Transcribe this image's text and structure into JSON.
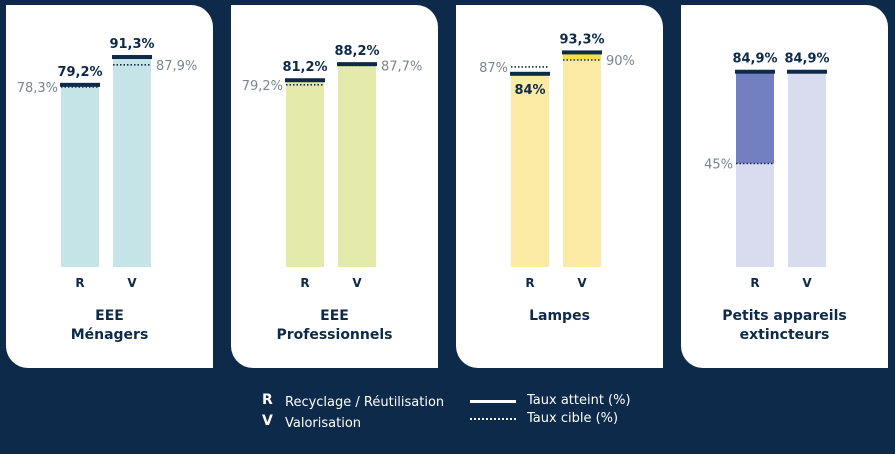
{
  "colors": {
    "background": "#0d2a4a",
    "panel": "#ffffff",
    "navy": "#0d2a4a",
    "value_label": "#7a8593"
  },
  "chart_data": [
    {
      "type": "bar",
      "title_lines": [
        "EEE",
        "Ménagers"
      ],
      "categories": [
        "R",
        "V"
      ],
      "bar_color": "#c5e4e7",
      "series": [
        {
          "name": "Taux atteint (%)",
          "values": [
            79.2,
            91.3
          ],
          "labels": [
            "79,2%",
            "91,3%"
          ]
        },
        {
          "name": "Taux cible (%)",
          "values": [
            78.3,
            87.9
          ],
          "labels": [
            "78,3%",
            "87,9%"
          ]
        }
      ]
    },
    {
      "type": "bar",
      "title_lines": [
        "EEE",
        "Professionnels"
      ],
      "categories": [
        "R",
        "V"
      ],
      "bar_color": "#e4ebaa",
      "series": [
        {
          "name": "Taux atteint (%)",
          "values": [
            81.2,
            88.2
          ],
          "labels": [
            "81,2%",
            "88,2%"
          ]
        },
        {
          "name": "Taux cible (%)",
          "values": [
            79.2,
            87.7
          ],
          "labels": [
            "79,2%",
            "87,7%"
          ]
        }
      ]
    },
    {
      "type": "bar",
      "title_lines": [
        "Lampes"
      ],
      "categories": [
        "R",
        "V"
      ],
      "bar_color": "#fbeaa4",
      "highlight_color": "#f8e04a",
      "series": [
        {
          "name": "Taux atteint (%)",
          "values": [
            84,
            93.3
          ],
          "labels": [
            "84%",
            "93,3%"
          ]
        },
        {
          "name": "Taux cible (%)",
          "values": [
            87,
            90
          ],
          "labels": [
            "87%",
            "90%"
          ]
        }
      ]
    },
    {
      "type": "bar",
      "title_lines": [
        "Petits appareils",
        "extincteurs"
      ],
      "categories": [
        "R",
        "V"
      ],
      "bar_color": "#d9dcef",
      "highlight_color": "#7280c2",
      "series": [
        {
          "name": "Taux atteint (%)",
          "values": [
            84.9,
            84.9
          ],
          "labels": [
            "84,9%",
            "84,9%"
          ]
        },
        {
          "name": "Taux cible (%)",
          "values": [
            45,
            null
          ],
          "labels": [
            "45%",
            ""
          ]
        }
      ]
    }
  ],
  "legend": {
    "r_key": "R",
    "r_text": "Recyclage / Réutilisation",
    "v_key": "V",
    "v_text": "Valorisation",
    "solid_text": "Taux atteint (%)",
    "dotted_text": "Taux cible (%)"
  }
}
